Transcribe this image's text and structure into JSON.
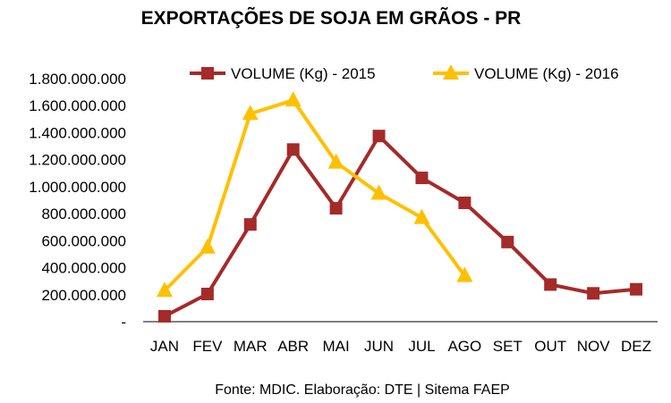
{
  "chart_data": {
    "type": "line",
    "title": "EXPORTAÇÕES DE SOJA EM GRÃOS - PR",
    "xlabel": "",
    "ylabel": "",
    "categories": [
      "JAN",
      "FEV",
      "MAR",
      "ABR",
      "MAI",
      "JUN",
      "JUL",
      "AGO",
      "SET",
      "OUT",
      "NOV",
      "DEZ"
    ],
    "ylim": [
      0,
      1800000000
    ],
    "yticks": [
      0,
      200000000,
      400000000,
      600000000,
      800000000,
      1000000000,
      1200000000,
      1400000000,
      1600000000,
      1800000000
    ],
    "ytick_labels": [
      "-",
      "200.000.000",
      "400.000.000",
      "600.000.000",
      "800.000.000",
      "1.000.000.000",
      "1.200.000.000",
      "1.400.000.000",
      "1.600.000.000",
      "1.800.000.000"
    ],
    "grid": false,
    "legend": "top",
    "series": [
      {
        "name": "VOLUME (Kg) - 2015",
        "color": "#a52a2a",
        "marker": "square",
        "values": [
          40000000,
          205000000,
          720000000,
          1275000000,
          840000000,
          1375000000,
          1065000000,
          880000000,
          590000000,
          275000000,
          210000000,
          240000000
        ]
      },
      {
        "name": "VOLUME (Kg) - 2016",
        "color": "#ffc000",
        "marker": "triangle",
        "values": [
          230000000,
          550000000,
          1540000000,
          1640000000,
          1180000000,
          950000000,
          770000000,
          340000000,
          null,
          null,
          null,
          null
        ]
      }
    ],
    "source": "Fonte: MDIC. Elaboração: DTE |  Sitema FAEP"
  }
}
